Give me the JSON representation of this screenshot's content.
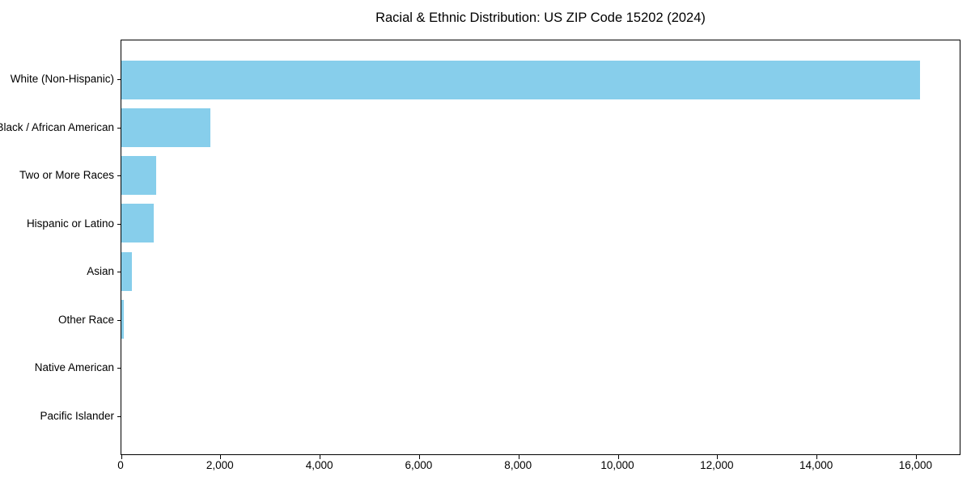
{
  "title": "Racial & Ethnic Distribution: US ZIP Code 15202 (2024)",
  "chart_data": {
    "type": "bar",
    "orientation": "horizontal",
    "title": "Racial & Ethnic Distribution: US ZIP Code 15202 (2024)",
    "categories": [
      "White (Non-Hispanic)",
      "Black / African American",
      "Two or More Races",
      "Hispanic or Latino",
      "Asian",
      "Other Race",
      "Native American",
      "Pacific Islander"
    ],
    "values": [
      16100,
      1800,
      700,
      650,
      210,
      50,
      0,
      0
    ],
    "xlabel": "",
    "ylabel": "",
    "xlim": [
      0,
      16905
    ],
    "x_ticks": [
      0,
      2000,
      4000,
      6000,
      8000,
      10000,
      12000,
      14000,
      16000
    ],
    "x_tick_labels": [
      "0",
      "2,000",
      "4,000",
      "6,000",
      "8,000",
      "10,000",
      "12,000",
      "14,000",
      "16,000"
    ],
    "bar_color": "#87CEEB",
    "axis_color": "#000000",
    "background_color": "#ffffff",
    "grid": false,
    "legend": false
  }
}
